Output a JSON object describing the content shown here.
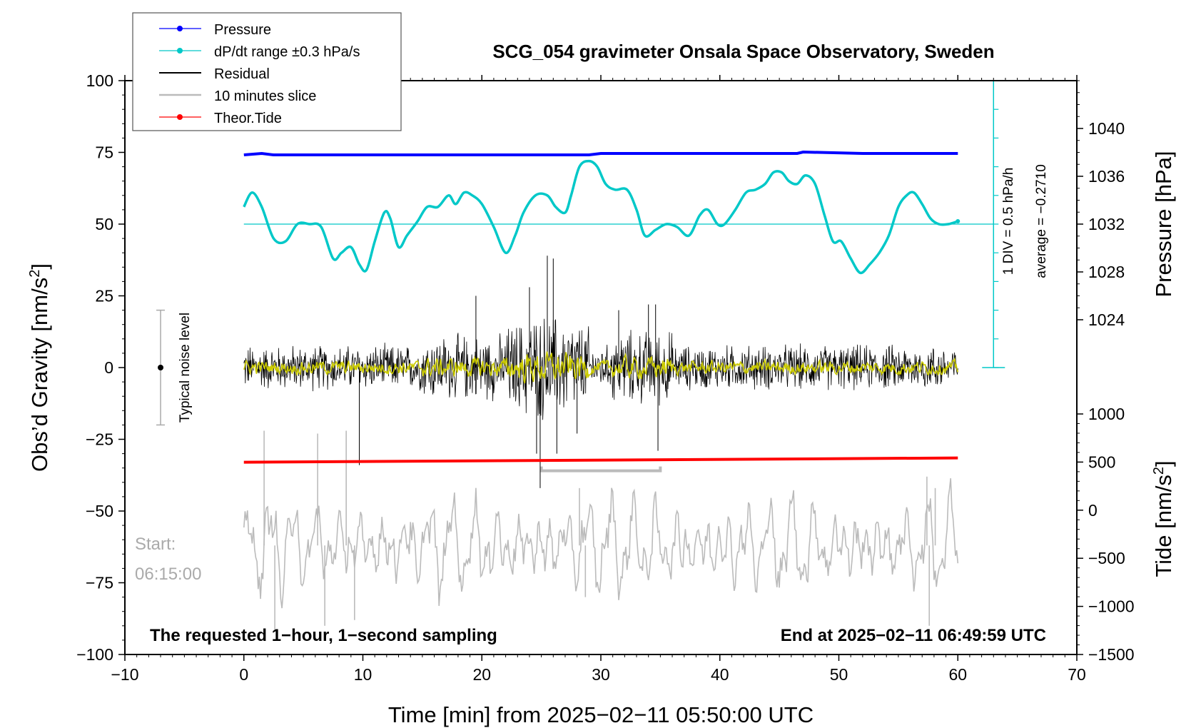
{
  "chart_data": {
    "type": "line",
    "title": "SCG_054 gravimeter Onsala Space Observatory, Sweden",
    "xlabel": "Time [min] from 2025−02−11 05:50:00 UTC",
    "ylabel": "Obs’d Gravity [nm/s²]",
    "ylabel_right_top": "Pressure [hPa]",
    "ylabel_right_bottom": "Tide [nm/s²]",
    "xlim": [
      -10,
      70
    ],
    "ylim": [
      -100,
      100
    ],
    "pressure_lim": [
      1020,
      1044
    ],
    "tide_lim": [
      -1500,
      1000
    ],
    "x_ticks": [
      -10,
      0,
      10,
      20,
      30,
      40,
      50,
      60,
      70
    ],
    "x_tick_labels": [
      "−10",
      "0",
      "10",
      "20",
      "30",
      "40",
      "50",
      "60",
      "70"
    ],
    "y_ticks": [
      100,
      75,
      50,
      25,
      0,
      -25,
      -50,
      -75,
      -100
    ],
    "y_tick_labels": [
      "100",
      "75",
      "50",
      "25",
      "0",
      "−25",
      "−50",
      "−75",
      "−100"
    ],
    "pressure_ticks": [
      1040,
      1036,
      1032,
      1028,
      1024
    ],
    "pressure_tick_labels": [
      "1040",
      "1036",
      "1032",
      "1028",
      "1024"
    ],
    "tide_ticks": [
      1000,
      500,
      0,
      -500,
      -1000,
      -1500
    ],
    "tide_tick_labels": [
      "1000",
      "500",
      "0",
      "−500",
      "−1000",
      "−1500"
    ],
    "legend": {
      "placement": "top-left",
      "entries": [
        {
          "label": "Pressure",
          "color": "#0000ff",
          "marker": true
        },
        {
          "label": "dP/dt range ±0.3 hPa/s",
          "color": "#00c8c8",
          "marker": true
        },
        {
          "label": "Residual",
          "color": "#000000",
          "marker": false
        },
        {
          "label": "10 minutes slice",
          "color": "#bbbbbb",
          "marker": false
        },
        {
          "label": "Theor.Tide",
          "color": "#ff0000",
          "marker": true
        }
      ]
    },
    "series": [
      {
        "name": "Pressure",
        "color": "#0000ff",
        "units": "hPa",
        "x": [
          0,
          1.5,
          2.5,
          10,
          20,
          29,
          30,
          40,
          46.5,
          47,
          52,
          60
        ],
        "values": [
          1038.2,
          1038.3,
          1038.2,
          1038.2,
          1038.2,
          1038.2,
          1038.3,
          1038.3,
          1038.3,
          1038.4,
          1038.3,
          1038.3
        ]
      },
      {
        "name": "dP/dt range ±0.3 hPa/s",
        "color": "#00c8c8",
        "baseline": 50,
        "x": [
          0,
          0.7,
          1.5,
          2.5,
          3.5,
          4.5,
          5.5,
          6.5,
          7.5,
          8.2,
          9,
          9.7,
          10.3,
          11,
          11.8,
          12.3,
          13,
          13.7,
          14.6,
          15.4,
          16.3,
          17.2,
          17.8,
          18.5,
          19.2,
          20,
          21,
          22,
          22.8,
          23.5,
          24.5,
          25.5,
          26.2,
          27,
          27.5,
          28.2,
          29,
          29.7,
          30.4,
          31.2,
          32.2,
          33,
          33.7,
          34.6,
          35.5,
          36.4,
          37.4,
          38.3,
          39,
          39.8,
          40.4,
          41.3,
          42.2,
          43,
          43.8,
          44.5,
          45.2,
          45.8,
          46.5,
          47.2,
          48,
          48.8,
          49.5,
          50.2,
          51,
          51.8,
          52.6,
          53.4,
          54.2,
          55,
          55.7,
          56.3,
          57,
          57.7,
          58.4,
          59.2,
          60
        ],
        "values": [
          56,
          61,
          56,
          45,
          44,
          50,
          50,
          49,
          38,
          40,
          42,
          36,
          34,
          44,
          54,
          52,
          42,
          46,
          51,
          56,
          56,
          60,
          57,
          61,
          60,
          57,
          49,
          40,
          46,
          54,
          60,
          60,
          56,
          54,
          60,
          70,
          72,
          70,
          64,
          62,
          62,
          55,
          46,
          48,
          50,
          49,
          46,
          53,
          55,
          50,
          50,
          55,
          61,
          62,
          64,
          68,
          68,
          65,
          64,
          67,
          64,
          53,
          44,
          44,
          38,
          33,
          36,
          40,
          46,
          56,
          60,
          61,
          57,
          52,
          50,
          50,
          51
        ]
      },
      {
        "name": "Residual",
        "color": "#000000",
        "typical_amplitude": 11,
        "spikes": [
          {
            "x": 9.7,
            "y": -34
          },
          {
            "x": 19.5,
            "y": 25
          },
          {
            "x": 24,
            "y": 28
          },
          {
            "x": 24.6,
            "y": -30
          },
          {
            "x": 24.9,
            "y": -42
          },
          {
            "x": 25.5,
            "y": 39
          },
          {
            "x": 26,
            "y": 38
          },
          {
            "x": 26.3,
            "y": -30
          },
          {
            "x": 28,
            "y": -23
          },
          {
            "x": 31.5,
            "y": 20
          },
          {
            "x": 34,
            "y": 22
          },
          {
            "x": 34.6,
            "y": 22
          },
          {
            "x": 34.8,
            "y": -29
          }
        ]
      },
      {
        "name": "Yellow filtered residual",
        "color": "#cccc00",
        "typical_amplitude": 3
      },
      {
        "name": "Theor.Tide",
        "color": "#ff0000",
        "x": [
          0,
          60
        ],
        "values": [
          -33,
          -31.5
        ]
      },
      {
        "name": "10 minutes slice",
        "color": "#bbbbbb",
        "slice_range_min": [
          25,
          35
        ],
        "slice_marker_y": -33,
        "center": -62,
        "typical_amplitude": 12,
        "extremes": [
          {
            "x": 1.7,
            "y": -22
          },
          {
            "x": 2.6,
            "y": -92
          },
          {
            "x": 6.2,
            "y": -23
          },
          {
            "x": 6.8,
            "y": -90
          },
          {
            "x": 8.6,
            "y": -22
          },
          {
            "x": 9.3,
            "y": -88
          },
          {
            "x": 28.2,
            "y": -42
          },
          {
            "x": 28.7,
            "y": -80
          },
          {
            "x": 57.6,
            "y": -90
          },
          {
            "x": 57.4,
            "y": -38
          },
          {
            "x": 58.1,
            "y": -42
          }
        ]
      }
    ],
    "annotations": {
      "noise_label": "Typical noise level",
      "noise_range": [
        -20,
        20
      ],
      "div_label": "1 DIV = 0.5 hPa/h",
      "average_label": "average = −0.2710",
      "start_label": "Start:",
      "start_time": "06:15:00",
      "bottom_left": "The requested 1−hour, 1−second sampling",
      "bottom_right": "End at 2025−02−11 06:49:59 UTC"
    }
  }
}
